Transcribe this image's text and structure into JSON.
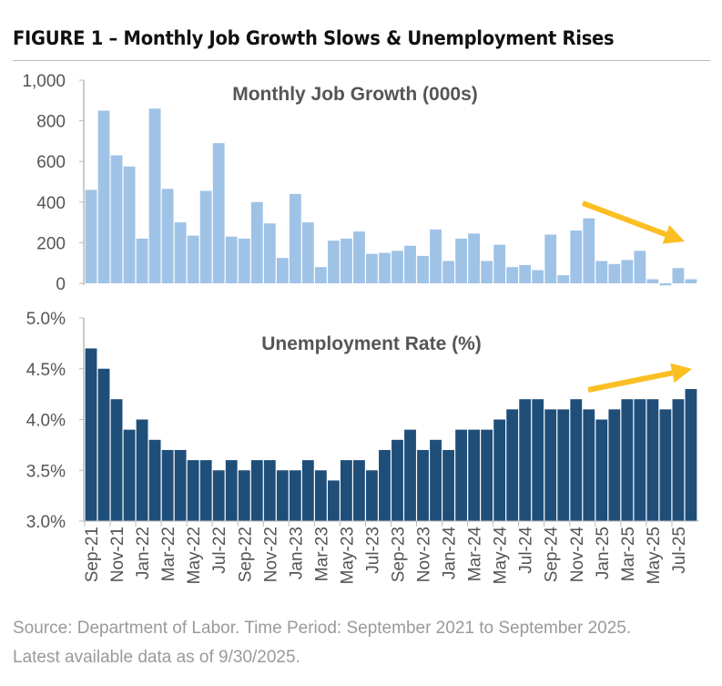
{
  "figure_title": "FIGURE 1 – Monthly Job Growth Slows & Unemployment Rises",
  "source": "Source: Department of Labor. Time Period: September 2021 to September 2025. Latest available data as of 9/30/2025.",
  "colors": {
    "jobs": "#9fc3e6",
    "unemployment": "#1f4e79",
    "arrow": "#fbbf24"
  },
  "chart_data": [
    {
      "type": "bar",
      "title": "Monthly Job Growth (000s)",
      "ylim": [
        0,
        1000
      ],
      "yticks": [
        "0",
        "200",
        "400",
        "600",
        "800",
        "1,000"
      ],
      "ytick_values": [
        0,
        200,
        400,
        600,
        800,
        1000
      ],
      "categories": [
        "Sep-21",
        "Oct-21",
        "Nov-21",
        "Dec-21",
        "Jan-22",
        "Feb-22",
        "Mar-22",
        "Apr-22",
        "May-22",
        "Jun-22",
        "Jul-22",
        "Aug-22",
        "Sep-22",
        "Oct-22",
        "Nov-22",
        "Dec-22",
        "Jan-23",
        "Feb-23",
        "Mar-23",
        "Apr-23",
        "May-23",
        "Jun-23",
        "Jul-23",
        "Aug-23",
        "Sep-23",
        "Oct-23",
        "Nov-23",
        "Dec-23",
        "Jan-24",
        "Feb-24",
        "Mar-24",
        "Apr-24",
        "May-24",
        "Jun-24",
        "Jul-24",
        "Aug-24",
        "Sep-24",
        "Oct-24",
        "Nov-24",
        "Dec-24",
        "Jan-25",
        "Feb-25",
        "Mar-25",
        "Apr-25",
        "May-25",
        "Jun-25",
        "Jul-25",
        "Aug-25"
      ],
      "values": [
        460,
        850,
        630,
        575,
        220,
        860,
        465,
        300,
        235,
        455,
        690,
        230,
        220,
        400,
        295,
        125,
        440,
        300,
        80,
        210,
        220,
        255,
        145,
        150,
        160,
        185,
        135,
        265,
        110,
        220,
        245,
        110,
        190,
        80,
        90,
        65,
        240,
        40,
        260,
        320,
        110,
        95,
        115,
        160,
        20,
        -10,
        75,
        20
      ],
      "annotation": "downward-arrow"
    },
    {
      "type": "bar",
      "title": "Unemployment Rate (%)",
      "ylim": [
        3.0,
        5.0
      ],
      "yticks": [
        "3.0%",
        "3.5%",
        "4.0%",
        "4.5%",
        "5.0%"
      ],
      "ytick_values": [
        3.0,
        3.5,
        4.0,
        4.5,
        5.0
      ],
      "xtick_labels": [
        "Sep-21",
        "Nov-21",
        "Jan-22",
        "Mar-22",
        "May-22",
        "Jul-22",
        "Sep-22",
        "Nov-22",
        "Jan-23",
        "Mar-23",
        "May-23",
        "Jul-23",
        "Sep-23",
        "Nov-23",
        "Jan-24",
        "Mar-24",
        "May-24",
        "Jul-24",
        "Sep-24",
        "Nov-24",
        "Jan-25",
        "Mar-25",
        "May-25",
        "Jul-25"
      ],
      "values": [
        4.7,
        4.5,
        4.2,
        3.9,
        4.0,
        3.8,
        3.7,
        3.7,
        3.6,
        3.6,
        3.5,
        3.6,
        3.5,
        3.6,
        3.6,
        3.5,
        3.5,
        3.6,
        3.5,
        3.4,
        3.6,
        3.6,
        3.5,
        3.7,
        3.8,
        3.9,
        3.7,
        3.8,
        3.7,
        3.9,
        3.9,
        3.9,
        4.0,
        4.1,
        4.2,
        4.2,
        4.1,
        4.1,
        4.2,
        4.1,
        4.0,
        4.1,
        4.2,
        4.2,
        4.2,
        4.1,
        4.2,
        4.3
      ],
      "annotation": "upward-arrow"
    }
  ]
}
